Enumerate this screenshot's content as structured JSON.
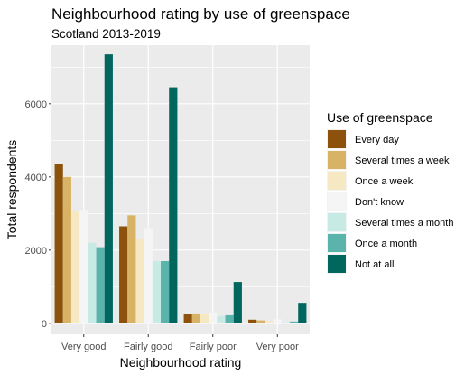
{
  "chart_data": {
    "type": "bar",
    "title": "Neighbourhood rating by use of greenspace",
    "subtitle": "Scotland 2013-2019",
    "xlabel": "Neighbourhood rating",
    "ylabel": "Total respondents",
    "ylim": [
      -300,
      7600
    ],
    "yticks": [
      "0",
      "2000",
      "4000",
      "6000"
    ],
    "grid": true,
    "legend_position": "right",
    "legend_title": "Use of greenspace",
    "categories": [
      "Very good",
      "Fairly good",
      "Fairly poor",
      "Very poor"
    ],
    "series": [
      {
        "name": "Every day",
        "color": "#8c510a",
        "values": [
          4350,
          2650,
          250,
          100
        ]
      },
      {
        "name": "Several times a week",
        "color": "#d8b365",
        "values": [
          4000,
          2950,
          270,
          80
        ]
      },
      {
        "name": "Once a week",
        "color": "#f6e8c3",
        "values": [
          3050,
          2300,
          260,
          60
        ]
      },
      {
        "name": "Don't know",
        "color": "#f5f5f5",
        "values": [
          3100,
          2600,
          300,
          110
        ]
      },
      {
        "name": "Several times a month",
        "color": "#c7eae5",
        "values": [
          2200,
          1700,
          200,
          30
        ]
      },
      {
        "name": "Once a month",
        "color": "#5ab4ac",
        "values": [
          2080,
          1700,
          220,
          50
        ]
      },
      {
        "name": "Not at all",
        "color": "#01665e",
        "values": [
          7350,
          6450,
          1130,
          560
        ]
      }
    ]
  }
}
